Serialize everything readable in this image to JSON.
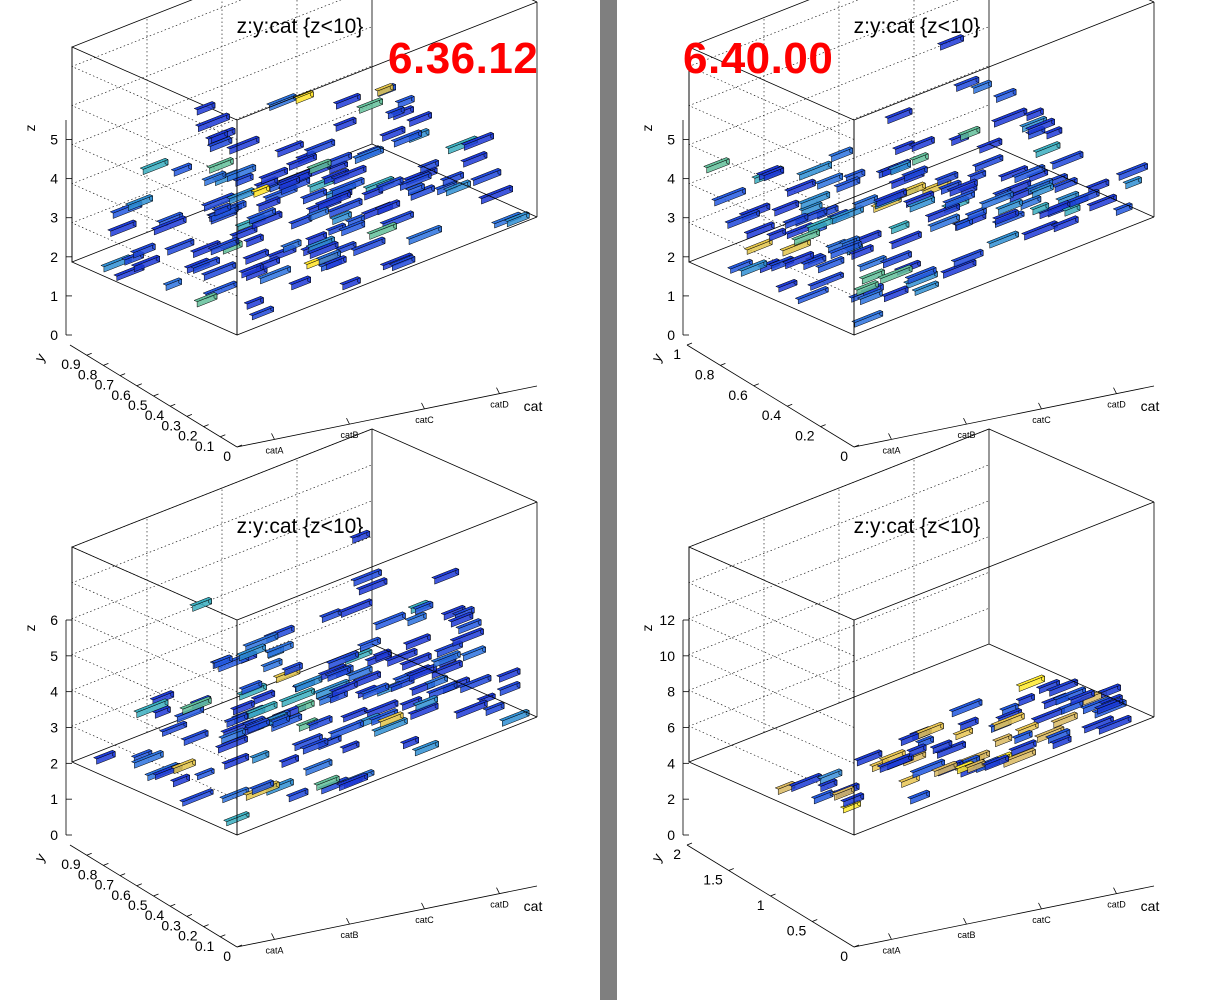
{
  "versions": {
    "left": "6.36.12",
    "right": "6.40.00"
  },
  "colors": {
    "version_text": "#ff0000",
    "divider": "#7f7f7f",
    "frame": "#000000",
    "grid": "#000000"
  },
  "chart_data": [
    {
      "type": "lego3d",
      "title": "z:y:cat {z<10}",
      "xlabel": "cat",
      "ylabel": "y",
      "zlabel": "z",
      "categories": [
        "catA",
        "catB",
        "catC",
        "catD"
      ],
      "y_ticks": [
        "0",
        "0.1",
        "0.2",
        "0.3",
        "0.4",
        "0.5",
        "0.6",
        "0.7",
        "0.8",
        "0.9"
      ],
      "z_ticks": [
        "0",
        "1",
        "2",
        "3",
        "4",
        "5"
      ],
      "ylim": [
        0,
        1
      ],
      "zlim": [
        0,
        5.5
      ],
      "grid": true,
      "seed": 11,
      "nboxes": 140,
      "hot": false
    },
    {
      "type": "lego3d",
      "title": "z:y:cat {z<10}",
      "xlabel": "cat",
      "ylabel": "y",
      "zlabel": "z",
      "categories": [
        "catA",
        "catB",
        "catC",
        "catD"
      ],
      "y_ticks": [
        "0",
        "0.2",
        "0.4",
        "0.6",
        "0.8",
        "1"
      ],
      "z_ticks": [
        "0",
        "1",
        "2",
        "3",
        "4",
        "5"
      ],
      "ylim": [
        0,
        1
      ],
      "zlim": [
        0,
        5.5
      ],
      "grid": true,
      "seed": 23,
      "nboxes": 140,
      "hot": false
    },
    {
      "type": "lego3d",
      "title": "z:y:cat {z<10}",
      "xlabel": "cat",
      "ylabel": "y",
      "zlabel": "z",
      "categories": [
        "catA",
        "catB",
        "catC",
        "catD"
      ],
      "y_ticks": [
        "0",
        "0.1",
        "0.2",
        "0.3",
        "0.4",
        "0.5",
        "0.6",
        "0.7",
        "0.8",
        "0.9"
      ],
      "z_ticks": [
        "0",
        "1",
        "2",
        "3",
        "4",
        "5",
        "6"
      ],
      "ylim": [
        0,
        1
      ],
      "zlim": [
        0,
        6
      ],
      "grid": true,
      "seed": 37,
      "nboxes": 140,
      "hot": false
    },
    {
      "type": "lego3d",
      "title": "z:y:cat {z<10}",
      "xlabel": "cat",
      "ylabel": "y",
      "zlabel": "z",
      "categories": [
        "catA",
        "catB",
        "catC",
        "catD"
      ],
      "y_ticks": [
        "0",
        "0.5",
        "1",
        "1.5",
        "2"
      ],
      "z_ticks": [
        "0",
        "2",
        "4",
        "6",
        "8",
        "10",
        "12"
      ],
      "ylim": [
        0,
        2
      ],
      "zlim": [
        0,
        12
      ],
      "grid": true,
      "seed": 51,
      "nboxes": 70,
      "hot": true
    }
  ]
}
